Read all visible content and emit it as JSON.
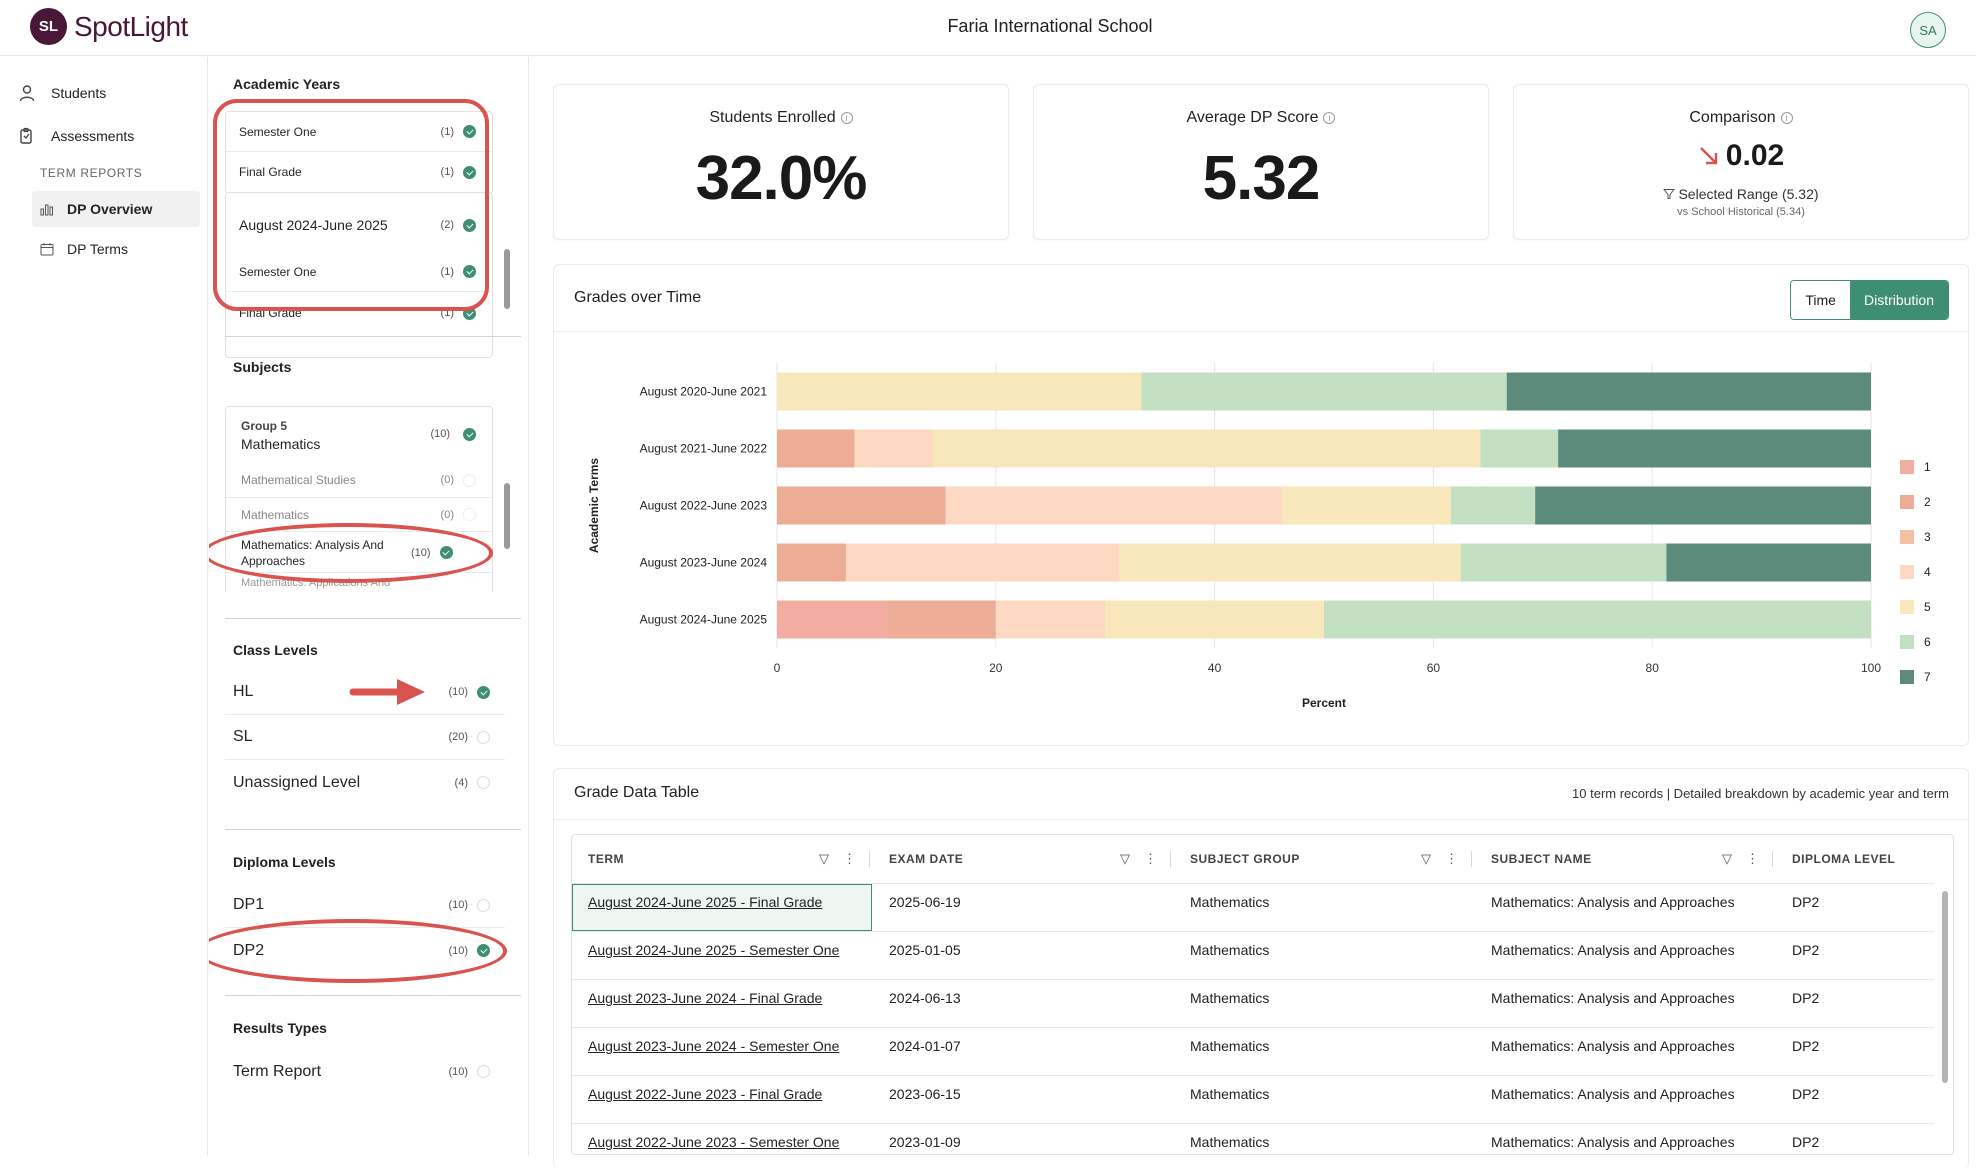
{
  "app": {
    "logo_badge": "SL",
    "logo_text": "SpotLight",
    "school": "Faria International School",
    "avatar": "SA"
  },
  "nav": {
    "students": "Students",
    "assessments": "Assessments",
    "section": "TERM REPORTS",
    "dp_overview": "DP Overview",
    "dp_terms": "DP Terms"
  },
  "filters": {
    "academic_years": {
      "title": "Academic Years",
      "rows": [
        {
          "label": "Semester One",
          "count": "(1)",
          "checked": true
        },
        {
          "label": "Final Grade",
          "count": "(1)",
          "checked": true
        },
        {
          "label": "August 2024-June 2025",
          "count": "(2)",
          "checked": true
        },
        {
          "label": "Semester One",
          "count": "(1)",
          "checked": true
        },
        {
          "label": "Final Grade",
          "count": "(1)",
          "checked": true
        }
      ]
    },
    "subjects": {
      "title": "Subjects",
      "group_label": "Group 5",
      "group_name": "Mathematics",
      "group_count": "(10)",
      "rows": [
        {
          "label": "Mathematical Studies",
          "count": "(0)",
          "checked": false
        },
        {
          "label": "Mathematics",
          "count": "(0)",
          "checked": false
        },
        {
          "label": "Mathematics: Analysis And Approaches",
          "count": "(10)",
          "checked": true
        },
        {
          "label": "Mathematics: Applications And",
          "count": "",
          "checked": false
        }
      ]
    },
    "class_levels": {
      "title": "Class Levels",
      "rows": [
        {
          "label": "HL",
          "count": "(10)",
          "checked": true
        },
        {
          "label": "SL",
          "count": "(20)",
          "checked": false
        },
        {
          "label": "Unassigned Level",
          "count": "(4)",
          "checked": false
        }
      ]
    },
    "diploma_levels": {
      "title": "Diploma Levels",
      "rows": [
        {
          "label": "DP1",
          "count": "(10)",
          "checked": false
        },
        {
          "label": "DP2",
          "count": "(10)",
          "checked": true
        }
      ]
    },
    "results_types": {
      "title": "Results Types",
      "rows": [
        {
          "label": "Term Report",
          "count": "(10)",
          "checked": false
        }
      ]
    }
  },
  "cards": {
    "enrolled": {
      "title": "Students Enrolled",
      "value": "32.0%"
    },
    "avg": {
      "title": "Average DP Score",
      "value": "5.32"
    },
    "comparison": {
      "title": "Comparison",
      "value": "0.02",
      "trend_icon": "arrow-down-right-icon",
      "line1": "Selected Range (5.32)",
      "line2": "vs School Historical (5.34)"
    }
  },
  "chart_panel": {
    "title": "Grades over Time",
    "toggle_time": "Time",
    "toggle_distribution": "Distribution"
  },
  "chart_data": {
    "type": "bar",
    "orientation": "horizontal",
    "stacked": true,
    "categories": [
      "August 2020-June 2021",
      "August 2021-June 2022",
      "August 2022-June 2023",
      "August 2023-June 2024",
      "August 2024-June 2025"
    ],
    "series": [
      {
        "name": "1",
        "color": "#f3aca2",
        "values": [
          0,
          0,
          0,
          0,
          10
        ]
      },
      {
        "name": "2",
        "color": "#ecac96",
        "values": [
          0,
          7.1,
          15.4,
          6.3,
          10
        ]
      },
      {
        "name": "3",
        "color": "#f2c1a4",
        "values": [
          0,
          0,
          0,
          0,
          0
        ]
      },
      {
        "name": "4",
        "color": "#fdd8c2",
        "values": [
          0,
          7.2,
          30.8,
          25,
          10
        ]
      },
      {
        "name": "5",
        "color": "#f7e7bb",
        "values": [
          33.3,
          50,
          15.4,
          31.2,
          20
        ]
      },
      {
        "name": "6",
        "color": "#c3e0c3",
        "values": [
          33.4,
          7.1,
          7.7,
          18.8,
          50
        ]
      },
      {
        "name": "7",
        "color": "#5c8b7b",
        "values": [
          33.3,
          28.6,
          30.7,
          18.7,
          0
        ]
      }
    ],
    "xlabel": "Percent",
    "ylabel": "Academic Terms",
    "xlim": [
      0,
      100
    ],
    "xticks": [
      0,
      20,
      40,
      60,
      80,
      100
    ],
    "grid": true,
    "legend": "right"
  },
  "table": {
    "title": "Grade Data Table",
    "meta": "10 term records | Detailed breakdown by academic year and term",
    "columns": [
      "TERM",
      "EXAM DATE",
      "SUBJECT GROUP",
      "SUBJECT NAME",
      "DIPLOMA LEVEL"
    ],
    "rows": [
      {
        "term": "August 2024-June 2025 - Final Grade",
        "date": "2025-06-19",
        "group": "Mathematics",
        "subject": "Mathematics: Analysis and Approaches",
        "level": "DP2"
      },
      {
        "term": "August 2024-June 2025 - Semester One",
        "date": "2025-01-05",
        "group": "Mathematics",
        "subject": "Mathematics: Analysis and Approaches",
        "level": "DP2"
      },
      {
        "term": "August 2023-June 2024 - Final Grade",
        "date": "2024-06-13",
        "group": "Mathematics",
        "subject": "Mathematics: Analysis and Approaches",
        "level": "DP2"
      },
      {
        "term": "August 2023-June 2024 - Semester One",
        "date": "2024-01-07",
        "group": "Mathematics",
        "subject": "Mathematics: Analysis and Approaches",
        "level": "DP2"
      },
      {
        "term": "August 2022-June 2023 - Final Grade",
        "date": "2023-06-15",
        "group": "Mathematics",
        "subject": "Mathematics: Analysis and Approaches",
        "level": "DP2"
      },
      {
        "term": "August 2022-June 2023 - Semester One",
        "date": "2023-01-09",
        "group": "Mathematics",
        "subject": "Mathematics: Analysis and Approaches",
        "level": "DP2"
      }
    ]
  }
}
